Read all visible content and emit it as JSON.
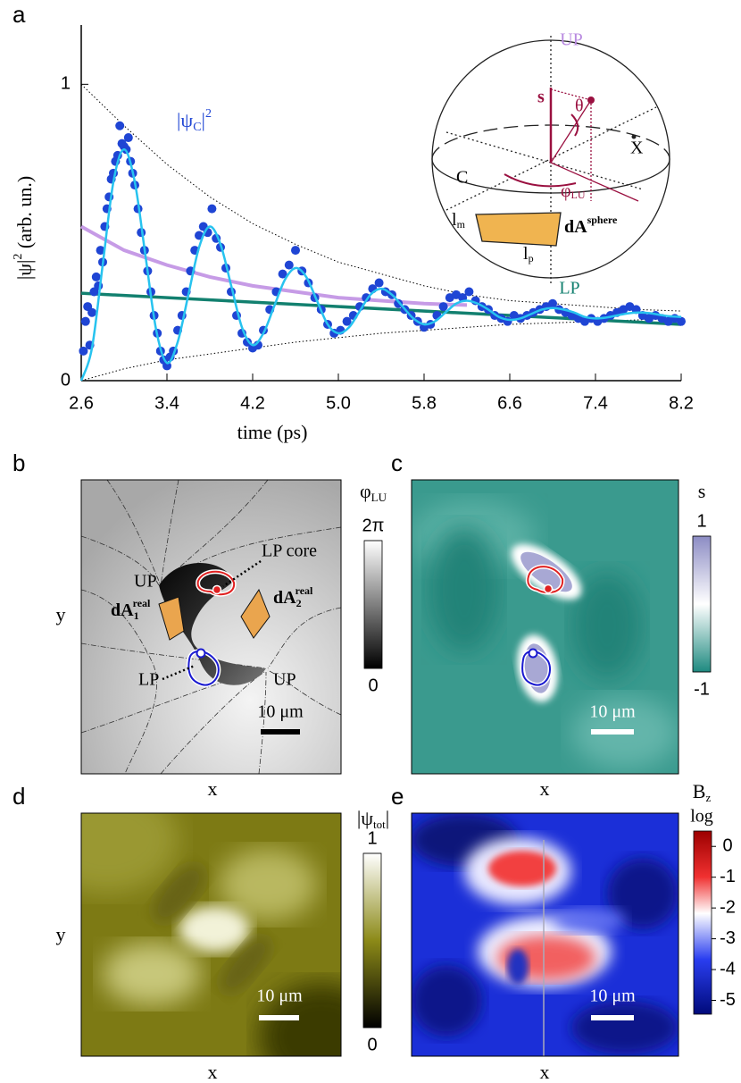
{
  "chart_data": {
    "type": "scatter",
    "label": "a",
    "xlabel": "time (ps)",
    "ylabel": [
      "|ψ|",
      "2",
      " (arb. un.)"
    ],
    "annotation": [
      "|ψ",
      "C",
      "|",
      "2"
    ],
    "xlim": [
      2.6,
      8.2
    ],
    "ylim": [
      0,
      1.2
    ],
    "xticks": [
      2.6,
      3.4,
      4.2,
      {
        "value": 5,
        "label": "5.0"
      },
      5.8,
      6.6,
      7.4,
      8.2
    ],
    "yticks": [
      0,
      1
    ],
    "series": [
      {
        "kind": "line",
        "dash": "dotted",
        "color": "#000000",
        "x": [
          2.6,
          3.0,
          3.4,
          3.8,
          4.2,
          4.6,
          5.0,
          5.4,
          5.8,
          6.2,
          6.6,
          7.0,
          7.4,
          7.8,
          8.2
        ],
        "values": [
          1.0,
          0.86,
          0.73,
          0.62,
          0.53,
          0.46,
          0.4,
          0.36,
          0.32,
          0.29,
          0.27,
          0.26,
          0.25,
          0.24,
          0.235
        ]
      },
      {
        "kind": "line",
        "dash": "dotted",
        "color": "#000000",
        "x": [
          2.6,
          3.0,
          3.4,
          3.8,
          4.2,
          4.6,
          5.0,
          5.4,
          5.8,
          6.2,
          6.6,
          7.0,
          7.4,
          7.8,
          8.2
        ],
        "values": [
          0.0,
          0.04,
          0.07,
          0.09,
          0.11,
          0.13,
          0.145,
          0.16,
          0.17,
          0.18,
          0.19,
          0.195,
          0.2,
          0.205,
          0.21
        ]
      },
      {
        "kind": "line",
        "width": 4,
        "color": "#c69be6",
        "x": [
          2.6,
          3.0,
          3.4,
          3.8,
          4.2,
          4.6,
          5.0,
          5.4,
          5.8,
          6.2
        ],
        "values": [
          0.52,
          0.44,
          0.39,
          0.35,
          0.32,
          0.3,
          0.28,
          0.27,
          0.26,
          0.255
        ]
      },
      {
        "kind": "line",
        "width": 3.5,
        "color": "#12806f",
        "x": [
          2.6,
          8.2
        ],
        "values": [
          0.295,
          0.19
        ]
      },
      {
        "kind": "scatter",
        "color": "#1f45d4",
        "x": [
          2.62,
          2.64,
          2.66,
          2.68,
          2.7,
          2.72,
          2.74,
          2.76,
          2.78,
          2.8,
          2.82,
          2.84,
          2.86,
          2.88,
          2.9,
          2.92,
          2.94,
          2.96,
          2.98,
          3.0,
          3.02,
          3.04,
          3.06,
          3.08,
          3.1,
          3.13,
          3.16,
          3.19,
          3.22,
          3.25,
          3.28,
          3.31,
          3.34,
          3.37,
          3.4,
          3.43,
          3.46,
          3.5,
          3.54,
          3.58,
          3.62,
          3.66,
          3.7,
          3.74,
          3.78,
          3.82,
          3.86,
          3.9,
          3.95,
          4.0,
          4.05,
          4.1,
          4.15,
          4.2,
          4.25,
          4.3,
          4.36,
          4.42,
          4.48,
          4.54,
          4.6,
          4.66,
          4.72,
          4.78,
          4.84,
          4.9,
          4.96,
          5.02,
          5.08,
          5.14,
          5.2,
          5.26,
          5.32,
          5.38,
          5.44,
          5.5,
          5.56,
          5.62,
          5.68,
          5.74,
          5.8,
          5.86,
          5.92,
          5.98,
          6.04,
          6.1,
          6.16,
          6.22,
          6.28,
          6.34,
          6.4,
          6.46,
          6.52,
          6.58,
          6.64,
          6.7,
          6.76,
          6.82,
          6.88,
          6.94,
          7.0,
          7.06,
          7.12,
          7.18,
          7.24,
          7.3,
          7.36,
          7.42,
          7.48,
          7.54,
          7.6,
          7.66,
          7.72,
          7.78,
          7.84,
          7.9,
          7.96,
          8.02,
          8.08,
          8.14,
          8.2
        ],
        "values": [
          0.1,
          0.2,
          0.25,
          0.12,
          0.23,
          0.3,
          0.35,
          0.32,
          0.44,
          0.4,
          0.52,
          0.58,
          0.62,
          0.68,
          0.7,
          0.74,
          0.76,
          0.86,
          0.8,
          0.79,
          0.78,
          0.82,
          0.74,
          0.7,
          0.66,
          0.58,
          0.5,
          0.44,
          0.37,
          0.3,
          0.22,
          0.16,
          0.1,
          0.07,
          0.05,
          0.08,
          0.1,
          0.17,
          0.22,
          0.3,
          0.37,
          0.44,
          0.49,
          0.52,
          0.5,
          0.58,
          0.48,
          0.45,
          0.38,
          0.3,
          0.22,
          0.16,
          0.13,
          0.11,
          0.12,
          0.17,
          0.24,
          0.3,
          0.36,
          0.39,
          0.44,
          0.37,
          0.33,
          0.28,
          0.24,
          0.19,
          0.16,
          0.17,
          0.2,
          0.22,
          0.25,
          0.28,
          0.31,
          0.33,
          0.3,
          0.29,
          0.26,
          0.24,
          0.22,
          0.2,
          0.18,
          0.19,
          0.22,
          0.25,
          0.28,
          0.29,
          0.28,
          0.3,
          0.27,
          0.25,
          0.24,
          0.22,
          0.21,
          0.2,
          0.22,
          0.21,
          0.22,
          0.23,
          0.24,
          0.25,
          0.26,
          0.24,
          0.23,
          0.22,
          0.21,
          0.2,
          0.21,
          0.2,
          0.21,
          0.22,
          0.23,
          0.24,
          0.25,
          0.24,
          0.22,
          0.21,
          0.22,
          0.21,
          0.2,
          0.21,
          0.2
        ]
      },
      {
        "kind": "line",
        "smooth": true,
        "width": 2.5,
        "color": "#27c3ef",
        "x": [
          2.6,
          2.7,
          2.8,
          2.9,
          3.0,
          3.1,
          3.2,
          3.3,
          3.4,
          3.5,
          3.6,
          3.7,
          3.8,
          3.9,
          4.0,
          4.1,
          4.2,
          4.3,
          4.4,
          4.5,
          4.6,
          4.7,
          4.8,
          4.9,
          5.0,
          5.1,
          5.2,
          5.3,
          5.4,
          5.5,
          5.6,
          5.7,
          5.8,
          5.9,
          6.0,
          6.1,
          6.2,
          6.3,
          6.4,
          6.5,
          6.6,
          6.7,
          6.8,
          6.9,
          7.0,
          7.1,
          7.2,
          7.3,
          7.4,
          7.5,
          7.6,
          7.7,
          7.8,
          7.9,
          8.0,
          8.1,
          8.2
        ],
        "values": [
          0.0,
          0.11,
          0.39,
          0.67,
          0.78,
          0.67,
          0.42,
          0.17,
          0.06,
          0.13,
          0.29,
          0.45,
          0.52,
          0.46,
          0.32,
          0.18,
          0.12,
          0.16,
          0.25,
          0.34,
          0.38,
          0.35,
          0.27,
          0.19,
          0.16,
          0.18,
          0.235,
          0.29,
          0.31,
          0.29,
          0.25,
          0.21,
          0.19,
          0.2,
          0.23,
          0.26,
          0.27,
          0.26,
          0.24,
          0.215,
          0.205,
          0.21,
          0.225,
          0.24,
          0.245,
          0.24,
          0.23,
          0.215,
          0.21,
          0.213,
          0.22,
          0.227,
          0.23,
          0.228,
          0.222,
          0.217,
          0.215
        ]
      }
    ]
  },
  "inset": {
    "UP": "UP",
    "s": "s",
    "theta": "θ",
    "X": "X",
    "C": "C",
    "phi": [
      "φ",
      "LU"
    ],
    "lm": [
      "l",
      "m"
    ],
    "dA": [
      "dA",
      "sphere"
    ],
    "lp": [
      "l",
      "p"
    ],
    "LP": "LP"
  },
  "panels": [
    {
      "letter": "b",
      "xlabel": "x",
      "ylabel": "y",
      "scalebar": "10 μm",
      "colorbar": {
        "title": [
          "φ",
          "LU"
        ],
        "lim": [
          0,
          6.283
        ],
        "ticks": [
          {
            "value": 6.283,
            "label": "2π"
          },
          0
        ]
      },
      "annotations": {
        "lp_core": "LP core",
        "up1": "UP",
        "da1": [
          "dA",
          "1",
          "real"
        ],
        "da2": [
          "dA",
          "2",
          "real"
        ],
        "lp": "LP",
        "up2": "UP"
      }
    },
    {
      "letter": "c",
      "xlabel": "x",
      "scalebar": "10 μm",
      "colorbar": {
        "title": [
          "s"
        ],
        "lim": [
          -1,
          1
        ],
        "ticks": [
          1,
          -1
        ]
      }
    },
    {
      "letter": "d",
      "xlabel": "x",
      "ylabel": "y",
      "scalebar": "10 μm",
      "colorbar": {
        "title": [
          "|ψ",
          "tot",
          "|"
        ],
        "lim": [
          0,
          1
        ],
        "ticks": [
          1,
          0
        ]
      }
    },
    {
      "letter": "e",
      "xlabel": "x",
      "scalebar": "10 μm",
      "colorbar": {
        "title": [
          "B",
          "z"
        ],
        "subtitle": "log",
        "lim": [
          -5.45,
          0.5
        ],
        "ticks": [
          0,
          -1,
          -2,
          -3,
          -4,
          -5
        ]
      }
    }
  ]
}
